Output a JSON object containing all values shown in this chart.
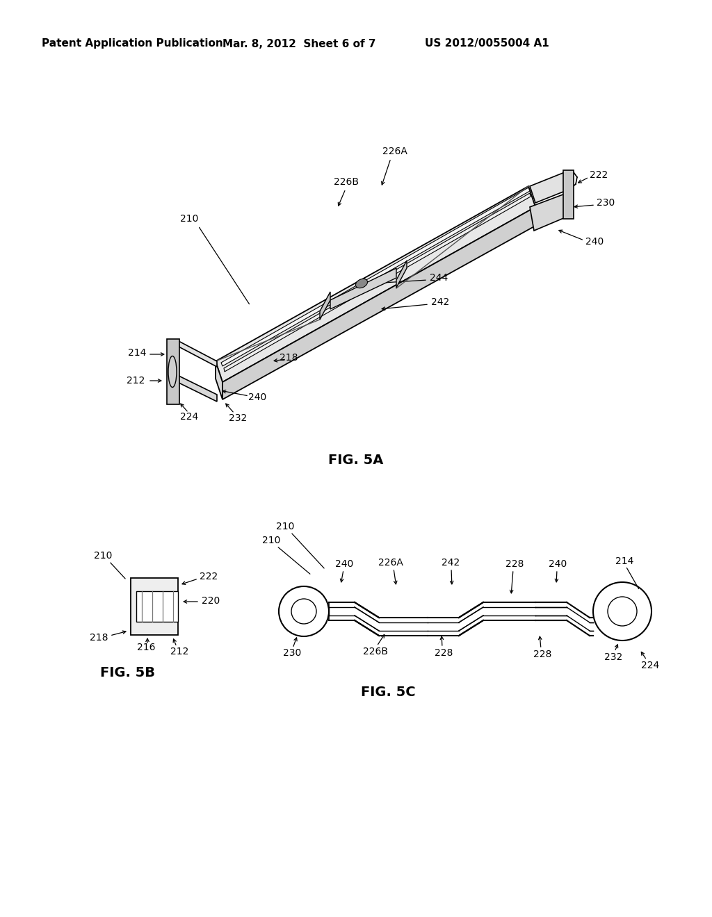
{
  "background_color": "#ffffff",
  "header_left": "Patent Application Publication",
  "header_center": "Mar. 8, 2012  Sheet 6 of 7",
  "header_right": "US 2012/0055004 A1",
  "fig5a_label": "FIG. 5A",
  "fig5b_label": "FIG. 5B",
  "fig5c_label": "FIG. 5C"
}
